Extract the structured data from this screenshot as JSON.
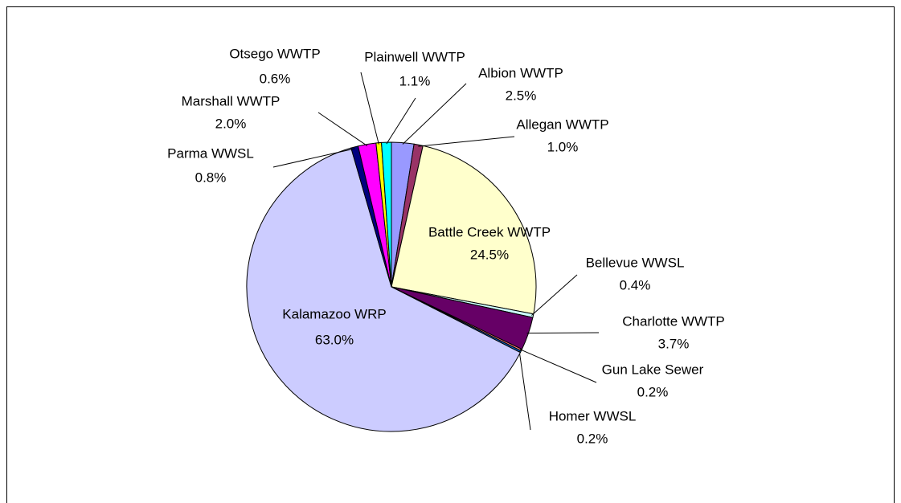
{
  "chart_data": {
    "type": "pie",
    "categories": [
      "Albion WWTP",
      "Allegan WWTP",
      "Battle Creek WWTP",
      "Bellevue WWSL",
      "Charlotte WWTP",
      "Gun Lake Sewer",
      "Homer WWSL",
      "Kalamazoo WRP",
      "Parma WWSL",
      "Marshall WWTP",
      "Otsego WWTP",
      "Plainwell WWTP"
    ],
    "values": [
      2.5,
      1.0,
      24.5,
      0.4,
      3.7,
      0.2,
      0.2,
      63.0,
      0.8,
      2.0,
      0.6,
      1.1
    ],
    "value_labels": [
      "2.5%",
      "1.0%",
      "24.5%",
      "0.4%",
      "3.7%",
      "0.2%",
      "0.2%",
      "63.0%",
      "0.8%",
      "2.0%",
      "0.6%",
      "1.1%"
    ],
    "colors": [
      "#9999ff",
      "#993366",
      "#ffffcc",
      "#ccffff",
      "#660066",
      "#ff8080",
      "#0066cc",
      "#ccccff",
      "#000080",
      "#ff00ff",
      "#ffff00",
      "#00ffff"
    ]
  }
}
